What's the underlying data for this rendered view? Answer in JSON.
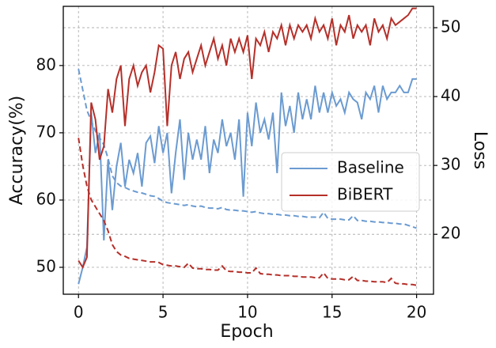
{
  "chart_data": {
    "type": "line",
    "xlabel": "Epoch",
    "ylabel": "Accuracy(%)",
    "y2label": "Loss",
    "xlim": [
      -0.9,
      21
    ],
    "ylim": [
      46,
      88.8
    ],
    "y2lim": [
      11.3,
      53.1
    ],
    "xticks": [
      0,
      5,
      10,
      15,
      20
    ],
    "yticks": [
      50,
      60,
      70,
      80
    ],
    "y2ticks": [
      20,
      30,
      40,
      50
    ],
    "grid": true,
    "legend": "center right",
    "x": [
      0,
      0.25,
      0.5,
      0.75,
      1,
      1.25,
      1.5,
      1.75,
      2,
      2.25,
      2.5,
      2.75,
      3,
      3.25,
      3.5,
      3.75,
      4,
      4.25,
      4.5,
      4.75,
      5,
      5.25,
      5.5,
      5.75,
      6,
      6.25,
      6.5,
      6.75,
      7,
      7.25,
      7.5,
      7.75,
      8,
      8.25,
      8.5,
      8.75,
      9,
      9.25,
      9.5,
      9.75,
      10,
      10.25,
      10.5,
      10.75,
      11,
      11.25,
      11.5,
      11.75,
      12,
      12.25,
      12.5,
      12.75,
      13,
      13.25,
      13.5,
      13.75,
      14,
      14.25,
      14.5,
      14.75,
      15,
      15.25,
      15.5,
      15.75,
      16,
      16.25,
      16.5,
      16.75,
      17,
      17.25,
      17.5,
      17.75,
      18,
      18.25,
      18.5,
      18.75,
      19,
      19.25,
      19.5,
      19.75,
      20
    ],
    "series": [
      {
        "name": "Baseline",
        "color": "#6b9bd1",
        "values": [
          47.5,
          50,
          53,
          73,
          67,
          70,
          54,
          66,
          58.5,
          65,
          68.5,
          62,
          66,
          64,
          67,
          62,
          68.5,
          69.5,
          65.5,
          71,
          67,
          70,
          61,
          67,
          72,
          63,
          70,
          66,
          69,
          66,
          71,
          64,
          69,
          67,
          72,
          68,
          70,
          66,
          72,
          60.5,
          73,
          68,
          74.5,
          70,
          72,
          69,
          73,
          64,
          76,
          71,
          74,
          70,
          76,
          72,
          75,
          72,
          77,
          73,
          76,
          73,
          76,
          74,
          75,
          73,
          76,
          75,
          74.5,
          72,
          76,
          75,
          77,
          73,
          77,
          75,
          76,
          76,
          77,
          76,
          76,
          78,
          78
        ],
        "loss": [
          44,
          41,
          38,
          36.5,
          35,
          34,
          33,
          31,
          28.5,
          27.5,
          27,
          26.8,
          26.5,
          26.3,
          26.1,
          26,
          25.8,
          25.6,
          25.5,
          25.2,
          24.8,
          24.6,
          24.5,
          24.4,
          24.3,
          24.2,
          24.3,
          24.1,
          24,
          24.1,
          23.9,
          23.8,
          23.8,
          23.7,
          23.9,
          23.6,
          23.5,
          23.5,
          23.4,
          23.4,
          23.3,
          23.2,
          23.3,
          23.1,
          23,
          23,
          22.9,
          22.9,
          22.8,
          22.8,
          22.7,
          22.7,
          22.6,
          22.6,
          22.5,
          22.5,
          22.5,
          22.4,
          23.2,
          22.3,
          22.2,
          22.2,
          22.2,
          22.1,
          22.1,
          22.7,
          22,
          22,
          21.9,
          21.9,
          21.8,
          21.8,
          21.7,
          21.7,
          21.6,
          21.6,
          21.5,
          21.5,
          21.3,
          21.1,
          20.9
        ]
      },
      {
        "name": "BiBERT",
        "color": "#b5302a",
        "values": [
          51,
          50,
          51.5,
          74.5,
          72,
          66,
          68,
          76.5,
          73,
          78,
          80,
          71,
          78,
          80,
          77,
          79,
          80,
          76,
          79,
          83,
          82.5,
          71,
          80,
          82,
          78,
          81,
          82,
          79,
          81,
          83,
          80,
          82,
          84,
          81,
          83,
          80,
          84,
          82,
          84,
          82,
          84.5,
          78,
          84,
          83,
          85,
          82,
          85,
          84,
          86,
          83,
          86,
          84,
          86,
          85,
          86,
          84,
          87,
          85,
          86,
          84,
          87,
          83,
          86,
          85,
          87.5,
          84,
          86,
          85,
          86,
          83,
          87,
          85,
          86,
          84,
          87,
          86,
          86.5,
          87,
          87.5,
          88.5,
          88.5
        ],
        "loss": [
          34,
          30,
          27,
          25,
          24,
          23,
          22,
          20.5,
          18.5,
          17.5,
          17,
          16.8,
          16.5,
          16.4,
          16.3,
          16.2,
          16.1,
          16,
          16,
          15.9,
          15.6,
          15.5,
          15.4,
          15.4,
          15.3,
          15.2,
          15.8,
          15.1,
          15,
          15,
          14.9,
          14.9,
          14.8,
          14.8,
          15.4,
          14.7,
          14.6,
          14.6,
          14.5,
          14.5,
          14.4,
          14.4,
          15.1,
          14.3,
          14.2,
          14.2,
          14.1,
          14.1,
          14,
          14,
          14,
          13.9,
          13.9,
          13.8,
          13.8,
          13.8,
          13.7,
          13.7,
          14.4,
          13.6,
          13.5,
          13.5,
          13.5,
          13.4,
          13.4,
          13.9,
          13.3,
          13.3,
          13.2,
          13.2,
          13.1,
          13.1,
          13.1,
          13,
          13.6,
          12.9,
          12.8,
          12.8,
          12.7,
          12.7,
          12.6
        ]
      }
    ]
  }
}
